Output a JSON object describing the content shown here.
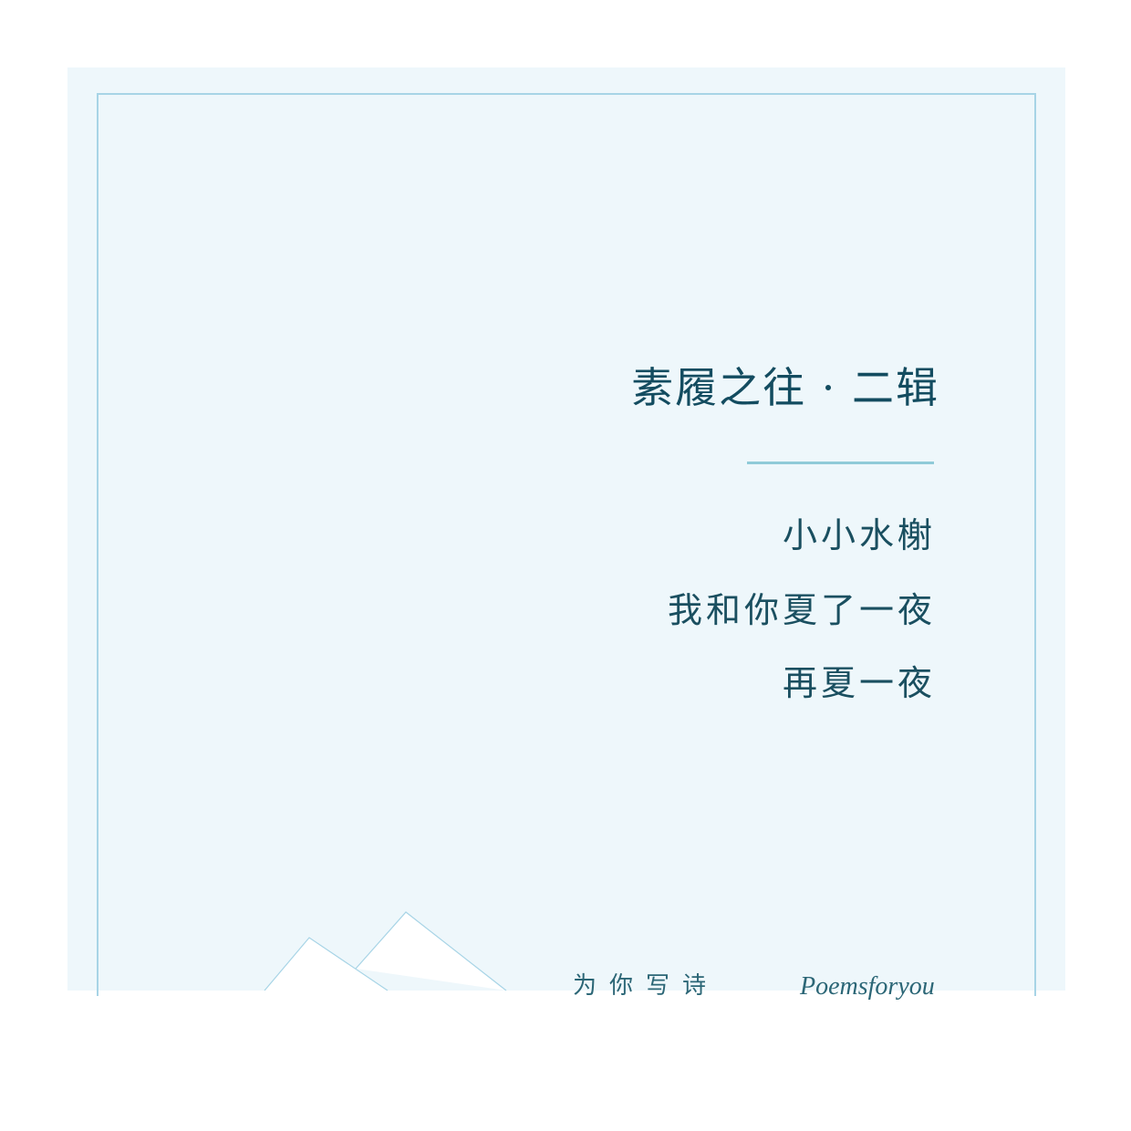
{
  "card": {
    "title": "素履之往 · 二辑",
    "poem_lines": [
      "小小水榭",
      "我和你夏了一夜",
      "再夏一夜"
    ],
    "footer_cn": "为你写诗",
    "footer_en": "Poemsforyou"
  },
  "colors": {
    "background": "#eef7fb",
    "frame": "#a7d4e6",
    "title_text": "#134c60",
    "divider": "#8fcad8",
    "mountain_outline": "#a7d4e6"
  },
  "icons": {
    "mountains": "mountain-outline-icon"
  }
}
